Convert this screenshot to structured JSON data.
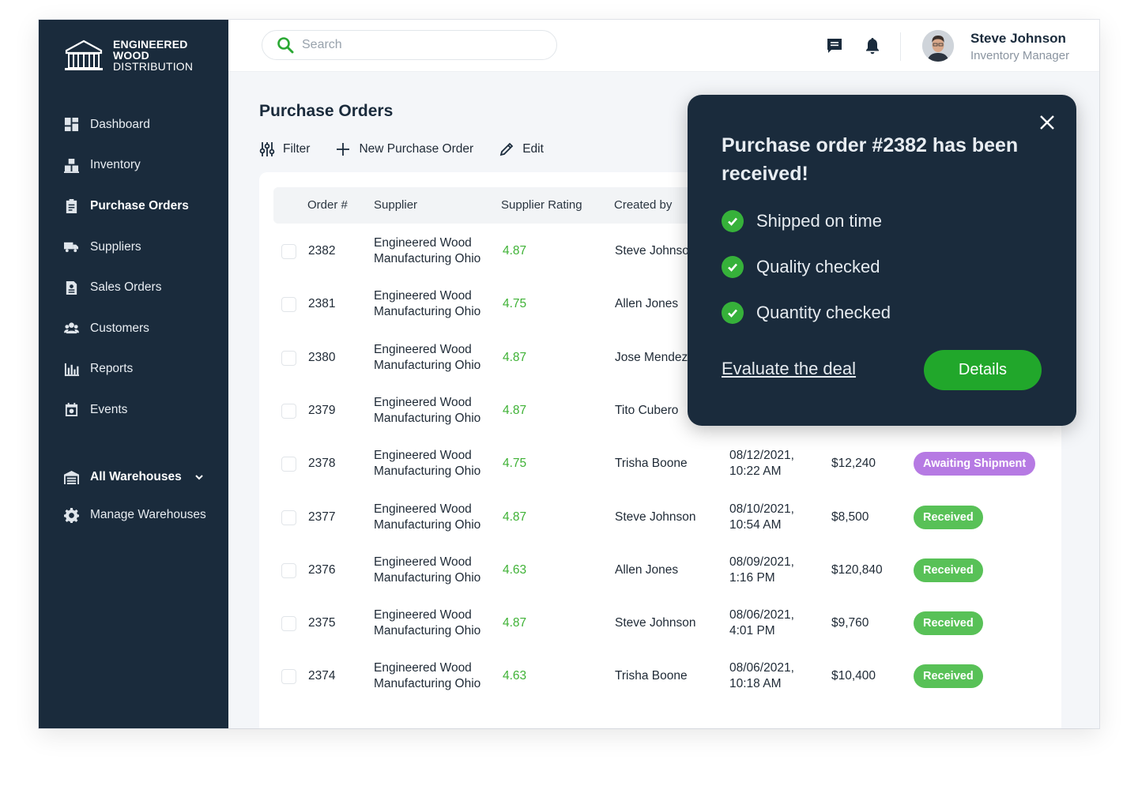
{
  "brand": {
    "line1": "ENGINEERED",
    "line2": "WOOD",
    "line3": "DISTRIBUTION"
  },
  "sidebar": {
    "items": [
      {
        "label": "Dashboard",
        "icon": "dashboard-icon"
      },
      {
        "label": "Inventory",
        "icon": "inventory-icon"
      },
      {
        "label": "Purchase Orders",
        "icon": "clipboard-icon",
        "active": true
      },
      {
        "label": "Suppliers",
        "icon": "truck-icon"
      },
      {
        "label": "Sales Orders",
        "icon": "document-icon"
      },
      {
        "label": "Customers",
        "icon": "users-icon"
      },
      {
        "label": "Reports",
        "icon": "bar-chart-icon"
      },
      {
        "label": "Events",
        "icon": "calendar-icon"
      }
    ],
    "warehouses": {
      "label": "All Warehouses",
      "icon": "warehouse-icon"
    },
    "manage": {
      "label": "Manage Warehouses",
      "icon": "gear-icon"
    }
  },
  "header": {
    "search_placeholder": "Search",
    "user_name": "Steve Johnson",
    "user_role": "Inventory Manager"
  },
  "page": {
    "title": "Purchase Orders",
    "toolbar": {
      "filter": "Filter",
      "new": "New Purchase Order",
      "edit": "Edit"
    }
  },
  "table": {
    "columns": {
      "order": "Order #",
      "supplier": "Supplier",
      "rating": "Supplier Rating",
      "created": "Created by"
    },
    "rows": [
      {
        "order": "2382",
        "supplier1": "Engineered Wood",
        "supplier2": "Manufacturing Ohio",
        "rating": "4.87",
        "created": "Steve Johnson",
        "date1": "",
        "date2": "",
        "amount": "",
        "status": ""
      },
      {
        "order": "2381",
        "supplier1": "Engineered Wood",
        "supplier2": "Manufacturing Ohio",
        "rating": "4.75",
        "created": "Allen Jones",
        "date1": "",
        "date2": "",
        "amount": "",
        "status": ""
      },
      {
        "order": "2380",
        "supplier1": "Engineered Wood",
        "supplier2": "Manufacturing Ohio",
        "rating": "4.87",
        "created": "Jose Mendez",
        "date1": "",
        "date2": "",
        "amount": "",
        "status": ""
      },
      {
        "order": "2379",
        "supplier1": "Engineered Wood",
        "supplier2": "Manufacturing Ohio",
        "rating": "4.87",
        "created": "Tito Cubero",
        "date1": "",
        "date2": "",
        "amount": "",
        "status": ""
      },
      {
        "order": "2378",
        "supplier1": "Engineered Wood",
        "supplier2": "Manufacturing Ohio",
        "rating": "4.75",
        "created": "Trisha Boone",
        "date1": "08/12/2021,",
        "date2": "10:22 AM",
        "amount": "$12,240",
        "status": "Awaiting Shipment"
      },
      {
        "order": "2377",
        "supplier1": "Engineered Wood",
        "supplier2": "Manufacturing Ohio",
        "rating": "4.87",
        "created": "Steve Johnson",
        "date1": "08/10/2021,",
        "date2": "10:54 AM",
        "amount": "$8,500",
        "status": "Received"
      },
      {
        "order": "2376",
        "supplier1": "Engineered Wood",
        "supplier2": "Manufacturing Ohio",
        "rating": "4.63",
        "created": "Allen Jones",
        "date1": "08/09/2021,",
        "date2": "1:16 PM",
        "amount": "$120,840",
        "status": "Received"
      },
      {
        "order": "2375",
        "supplier1": "Engineered Wood",
        "supplier2": "Manufacturing Ohio",
        "rating": "4.87",
        "created": "Steve Johnson",
        "date1": "08/06/2021,",
        "date2": "4:01 PM",
        "amount": "$9,760",
        "status": "Received"
      },
      {
        "order": "2374",
        "supplier1": "Engineered Wood",
        "supplier2": "Manufacturing Ohio",
        "rating": "4.63",
        "created": "Trisha Boone",
        "date1": "08/06/2021,",
        "date2": "10:18 AM",
        "amount": "$10,400",
        "status": "Received"
      }
    ]
  },
  "popup": {
    "title": "Purchase order #2382 has been received!",
    "checks": [
      "Shipped on time",
      "Quality checked",
      "Quantity checked"
    ],
    "link": "Evaluate the deal",
    "button": "Details"
  },
  "colors": {
    "sidebar": "#1a2b3c",
    "rating": "#3fb236",
    "awaiting": "#b67ae3",
    "received": "#58c157",
    "primary_button": "#21a72b"
  }
}
